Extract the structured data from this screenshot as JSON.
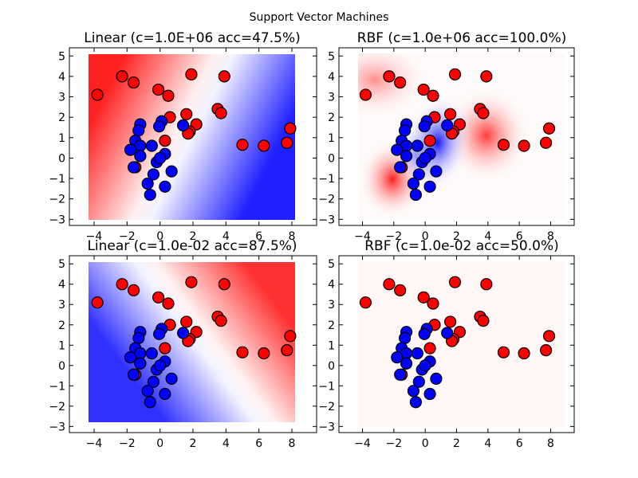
{
  "figure": {
    "suptitle": "Support Vector Machines"
  },
  "colors": {
    "class_red": "#ff0000",
    "class_blue": "#0000ff",
    "cmap_red": "#ff0000",
    "cmap_mid": "#ffffff",
    "cmap_blue": "#0000ff",
    "point_edge": "#000000"
  },
  "chart_data": [
    {
      "type": "scatter",
      "title": "Linear (c=1.0E+06 acc=47.5%)",
      "kernel": "linear",
      "background": "decision-function-bwr",
      "xlim": [
        -5.5,
        9.5
      ],
      "ylim": [
        -3.3,
        5.4
      ],
      "xticks": [
        "−4",
        "−2",
        "0",
        "2",
        "4",
        "6",
        "8"
      ],
      "yticks": [
        "−3",
        "−2",
        "−1",
        "0",
        "1",
        "2",
        "3",
        "4",
        "5"
      ]
    },
    {
      "type": "scatter",
      "title": "RBF (c=1.0e+06 acc=100.0%)",
      "kernel": "rbf",
      "background": "decision-function-bwr",
      "xlim": [
        -5.5,
        9.5
      ],
      "ylim": [
        -3.3,
        5.4
      ],
      "xticks": [
        "−4",
        "−2",
        "0",
        "2",
        "4",
        "6",
        "8"
      ],
      "yticks": [
        "−3",
        "−2",
        "−1",
        "0",
        "1",
        "2",
        "3",
        "4",
        "5"
      ]
    },
    {
      "type": "scatter",
      "title": "Linear (c=1.0e-02 acc=87.5%)",
      "kernel": "linear",
      "background": "decision-function-bwr",
      "xlim": [
        -5.5,
        9.5
      ],
      "ylim": [
        -3.3,
        5.4
      ],
      "xticks": [
        "−4",
        "−2",
        "0",
        "2",
        "4",
        "6",
        "8"
      ],
      "yticks": [
        "−3",
        "−2",
        "−1",
        "0",
        "1",
        "2",
        "3",
        "4",
        "5"
      ]
    },
    {
      "type": "scatter",
      "title": "RBF (c=1.0e-02 acc=50.0%)",
      "kernel": "rbf",
      "background": "decision-function-bwr",
      "xlim": [
        -5.5,
        9.5
      ],
      "ylim": [
        -3.3,
        5.4
      ],
      "xticks": [
        "−4",
        "−2",
        "0",
        "2",
        "4",
        "6",
        "8"
      ],
      "yticks": [
        "−3",
        "−2",
        "−1",
        "0",
        "1",
        "2",
        "3",
        "4",
        "5"
      ]
    }
  ],
  "points": {
    "red": [
      [
        -3.8,
        3.1
      ],
      [
        -2.3,
        4.0
      ],
      [
        -1.6,
        3.7
      ],
      [
        -0.1,
        3.35
      ],
      [
        0.5,
        3.05
      ],
      [
        1.9,
        4.1
      ],
      [
        3.9,
        4.0
      ],
      [
        0.6,
        2.0
      ],
      [
        1.6,
        2.15
      ],
      [
        2.2,
        1.65
      ],
      [
        1.8,
        1.3
      ],
      [
        1.7,
        1.2
      ],
      [
        3.5,
        2.4
      ],
      [
        3.7,
        2.2
      ],
      [
        0.3,
        0.85
      ],
      [
        5.0,
        0.65
      ],
      [
        6.3,
        0.6
      ],
      [
        7.7,
        0.75
      ],
      [
        7.9,
        1.45
      ],
      [
        -1.5,
        -0.45
      ]
    ],
    "blue": [
      [
        -1.2,
        1.65
      ],
      [
        -1.3,
        1.35
      ],
      [
        -1.5,
        0.85
      ],
      [
        -1.2,
        0.6
      ],
      [
        -1.8,
        0.4
      ],
      [
        -1.2,
        0.1
      ],
      [
        -0.5,
        0.6
      ],
      [
        0.3,
        0.2
      ],
      [
        -0.2,
        -0.2
      ],
      [
        -0.4,
        -0.8
      ],
      [
        0.7,
        -0.65
      ],
      [
        -0.75,
        -1.25
      ],
      [
        0.3,
        -1.4
      ],
      [
        -0.6,
        -1.8
      ],
      [
        -1.6,
        -0.45
      ],
      [
        0.1,
        1.8
      ],
      [
        -0.05,
        1.55
      ],
      [
        1.4,
        1.6
      ],
      [
        0.0,
        0.0
      ]
    ]
  }
}
